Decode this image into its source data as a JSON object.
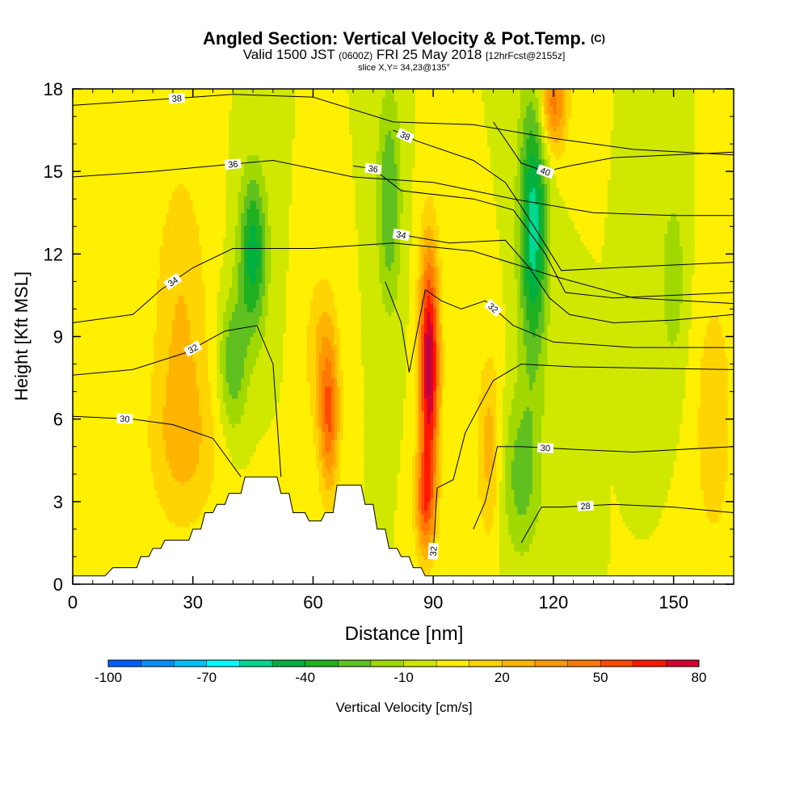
{
  "title": {
    "main": "Angled Section: Vertical Velocity & Pot.Temp.",
    "copyright": "(C)",
    "valid_prefix": "Valid 1500 JST",
    "valid_utc": "(0600Z)",
    "valid_date": "FRI 25 May 2018",
    "forecast": "[12hrFcst@2155z]",
    "slice": "slice X,Y= 34,23@135°"
  },
  "chart_data": {
    "type": "heatmap",
    "xlabel": "Distance [nm]",
    "ylabel": "Height [Kft MSL]",
    "xlim": [
      0,
      165
    ],
    "ylim": [
      0,
      18
    ],
    "xticks": [
      0,
      30,
      60,
      90,
      120,
      150
    ],
    "yticks": [
      0,
      3,
      6,
      9,
      12,
      15,
      18
    ],
    "colorbar": {
      "label": "Vertical Velocity [cm/s]",
      "min": -100,
      "max": 80,
      "step": 10,
      "tick_labels": [
        "-100",
        "-70",
        "-40",
        "-10",
        "20",
        "50",
        "80"
      ],
      "colors": [
        "#0000ff",
        "#0060ff",
        "#0090ff",
        "#00c0ff",
        "#00ffff",
        "#00d890",
        "#00b040",
        "#20b020",
        "#60c020",
        "#a0d800",
        "#d0e800",
        "#ffef00",
        "#ffd400",
        "#ffb400",
        "#ff9800",
        "#ff7800",
        "#ff4800",
        "#ff1800",
        "#d80030",
        "#b00048",
        "#88006a",
        "#580088"
      ]
    },
    "terrain_kft": [
      [
        0,
        0.3
      ],
      [
        8,
        0.3
      ],
      [
        10,
        0.6
      ],
      [
        16,
        0.6
      ],
      [
        17,
        1.0
      ],
      [
        19,
        1.0
      ],
      [
        20,
        1.3
      ],
      [
        22,
        1.3
      ],
      [
        23,
        1.6
      ],
      [
        29,
        1.6
      ],
      [
        30,
        2.0
      ],
      [
        32,
        2.0
      ],
      [
        33,
        2.6
      ],
      [
        35,
        2.6
      ],
      [
        36,
        2.9
      ],
      [
        38,
        2.9
      ],
      [
        39,
        3.3
      ],
      [
        42,
        3.3
      ],
      [
        43,
        3.9
      ],
      [
        51,
        3.9
      ],
      [
        52,
        3.3
      ],
      [
        54,
        3.3
      ],
      [
        55,
        2.6
      ],
      [
        58,
        2.6
      ],
      [
        59,
        2.3
      ],
      [
        62,
        2.3
      ],
      [
        63,
        2.6
      ],
      [
        65,
        2.6
      ],
      [
        66,
        3.6
      ],
      [
        72,
        3.6
      ],
      [
        73,
        2.9
      ],
      [
        75,
        2.9
      ],
      [
        76,
        2.0
      ],
      [
        78,
        2.0
      ],
      [
        79,
        1.3
      ],
      [
        81,
        1.3
      ],
      [
        82,
        1.0
      ],
      [
        84,
        1.0
      ],
      [
        85,
        0.6
      ],
      [
        87,
        0.6
      ],
      [
        88,
        0.3
      ],
      [
        165,
        0.3
      ]
    ],
    "vertical_velocity_features": [
      {
        "x": 27,
        "y": 9.5,
        "sx": 7,
        "sy": 6,
        "w": 20
      },
      {
        "x": 28,
        "y": 5,
        "sx": 10,
        "sy": 3,
        "w": 15
      },
      {
        "x": 45,
        "y": 12,
        "sx": 3.5,
        "sy": 3,
        "w": -45
      },
      {
        "x": 40,
        "y": 8,
        "sx": 3.5,
        "sy": 2.5,
        "w": -30
      },
      {
        "x": 64,
        "y": 6,
        "sx": 2.5,
        "sy": 2.8,
        "w": 45
      },
      {
        "x": 62,
        "y": 8.5,
        "sx": 4,
        "sy": 3,
        "w": 20
      },
      {
        "x": 89,
        "y": 8,
        "sx": 2.5,
        "sy": 4.2,
        "w": 85
      },
      {
        "x": 88,
        "y": 3,
        "sx": 2.5,
        "sy": 2,
        "w": 45
      },
      {
        "x": 79,
        "y": 14,
        "sx": 3,
        "sy": 4,
        "w": -30
      },
      {
        "x": 104,
        "y": 5,
        "sx": 3,
        "sy": 3.5,
        "w": 25
      },
      {
        "x": 115,
        "y": 13,
        "sx": 3.5,
        "sy": 5,
        "w": -55
      },
      {
        "x": 120,
        "y": 17.5,
        "sx": 3.5,
        "sy": 1.8,
        "w": 45
      },
      {
        "x": 112,
        "y": 4,
        "sx": 5,
        "sy": 3,
        "w": -25
      },
      {
        "x": 150,
        "y": 11,
        "sx": 4,
        "sy": 4,
        "w": -15
      },
      {
        "x": 160,
        "y": 6,
        "sx": 6,
        "sy": 6,
        "w": 15
      }
    ],
    "theta_contours": [
      {
        "label": "30",
        "label_x": 13,
        "points": [
          [
            0,
            6.1
          ],
          [
            15,
            6.0
          ],
          [
            25,
            5.8
          ],
          [
            35,
            5.3
          ],
          [
            42,
            3.9
          ]
        ]
      },
      {
        "label": "32",
        "label_x": 30,
        "points": [
          [
            0,
            7.6
          ],
          [
            15,
            7.8
          ],
          [
            28,
            8.4
          ],
          [
            38,
            9.2
          ],
          [
            46,
            9.4
          ],
          [
            50,
            8.0
          ],
          [
            52,
            3.9
          ]
        ]
      },
      {
        "label": "34",
        "label_x": 25,
        "points": [
          [
            0,
            9.5
          ],
          [
            15,
            9.8
          ],
          [
            22,
            10.7
          ],
          [
            30,
            11.5
          ],
          [
            40,
            12.2
          ],
          [
            60,
            12.2
          ],
          [
            80,
            12.4
          ],
          [
            100,
            12.1
          ],
          [
            120,
            11.2
          ],
          [
            140,
            10.4
          ],
          [
            165,
            10.2
          ]
        ]
      },
      {
        "label": "36",
        "label_x": 40,
        "points": [
          [
            0,
            14.8
          ],
          [
            20,
            15.0
          ],
          [
            35,
            15.2
          ],
          [
            50,
            15.4
          ],
          [
            70,
            14.8
          ],
          [
            90,
            14.6
          ],
          [
            110,
            14.0
          ],
          [
            130,
            13.5
          ],
          [
            150,
            13.4
          ],
          [
            165,
            13.4
          ]
        ]
      },
      {
        "label": "38",
        "label_x": 26,
        "points": [
          [
            0,
            17.4
          ],
          [
            20,
            17.6
          ],
          [
            40,
            17.8
          ],
          [
            60,
            17.7
          ],
          [
            80,
            16.8
          ],
          [
            100,
            16.7
          ],
          [
            120,
            16.2
          ],
          [
            140,
            15.8
          ],
          [
            165,
            15.6
          ]
        ]
      },
      {
        "label": "34",
        "label_x": 82,
        "points": [
          [
            82,
            12.7
          ],
          [
            94,
            12.4
          ],
          [
            108,
            12.5
          ],
          [
            114,
            11.5
          ],
          [
            119,
            10.4
          ],
          [
            124,
            9.8
          ],
          [
            135,
            9.5
          ],
          [
            150,
            9.6
          ],
          [
            165,
            9.8
          ]
        ]
      },
      {
        "label": "36",
        "label_x": 75,
        "points": [
          [
            70,
            15.2
          ],
          [
            75,
            15.1
          ],
          [
            82,
            14.3
          ],
          [
            100,
            14.0
          ],
          [
            110,
            13.6
          ],
          [
            118,
            12.0
          ],
          [
            123,
            10.6
          ],
          [
            135,
            10.4
          ],
          [
            165,
            10.6
          ]
        ]
      },
      {
        "label": "38",
        "label_x": 83,
        "points": [
          [
            80,
            16.5
          ],
          [
            86,
            16.1
          ],
          [
            100,
            15.4
          ],
          [
            108,
            14.6
          ],
          [
            113,
            13.5
          ],
          [
            122,
            11.4
          ],
          [
            135,
            11.5
          ],
          [
            165,
            11.7
          ]
        ]
      },
      {
        "label": "40",
        "label_x": 118,
        "points": [
          [
            105,
            16.8
          ],
          [
            112,
            15.3
          ],
          [
            118,
            15.0
          ],
          [
            124,
            15.2
          ],
          [
            135,
            15.5
          ],
          [
            165,
            15.7
          ]
        ]
      },
      {
        "label": "32",
        "label_x": 105,
        "points": [
          [
            78,
            11.0
          ],
          [
            82,
            9.5
          ],
          [
            84,
            7.7
          ],
          [
            88,
            10.7
          ],
          [
            92,
            10.3
          ],
          [
            97,
            10.0
          ],
          [
            103,
            10.3
          ],
          [
            110,
            9.4
          ],
          [
            120,
            8.8
          ],
          [
            140,
            8.6
          ],
          [
            165,
            8.6
          ]
        ]
      },
      {
        "label": "32",
        "label_x": 90,
        "points": [
          [
            90,
            1.2
          ],
          [
            91,
            3.5
          ],
          [
            95,
            3.8
          ],
          [
            98,
            5.5
          ],
          [
            102,
            6.6
          ],
          [
            105,
            7.4
          ],
          [
            112,
            8.0
          ],
          [
            125,
            7.9
          ],
          [
            165,
            7.8
          ]
        ]
      },
      {
        "label": "30",
        "label_x": 118,
        "points": [
          [
            100,
            2.0
          ],
          [
            103,
            3.0
          ],
          [
            106,
            5.0
          ],
          [
            112,
            5.0
          ],
          [
            125,
            4.9
          ],
          [
            140,
            4.8
          ],
          [
            165,
            5.0
          ]
        ]
      },
      {
        "label": "28",
        "label_x": 128,
        "points": [
          [
            112,
            1.5
          ],
          [
            117,
            2.8
          ],
          [
            122,
            2.8
          ],
          [
            135,
            2.9
          ],
          [
            150,
            2.8
          ],
          [
            165,
            2.6
          ]
        ]
      }
    ]
  }
}
